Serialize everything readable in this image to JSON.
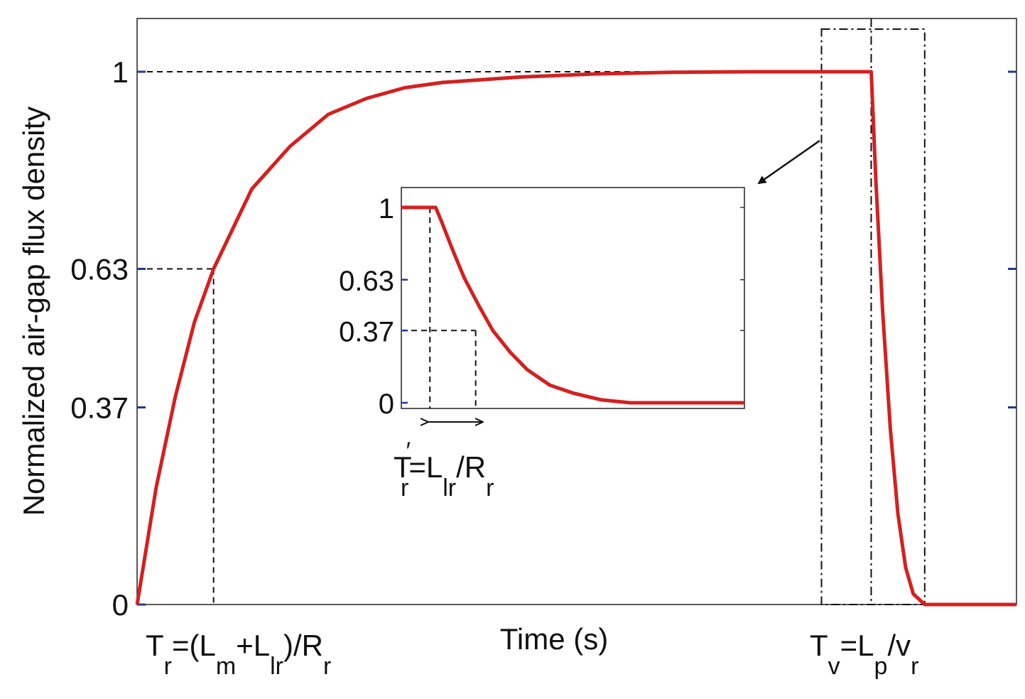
{
  "chart_data": [
    {
      "type": "line",
      "xlabel": "Time (s)",
      "ylabel": "Normalized air-gap flux density",
      "ylim": [
        0,
        1.1
      ],
      "xlim": [
        0,
        11.5
      ],
      "yticks": [
        "0",
        "0.37",
        "0.63",
        "1"
      ],
      "ytick_values": [
        0,
        0.37,
        0.63,
        1
      ],
      "grid": false,
      "series": [
        {
          "color": "#d42020",
          "x": [
            0,
            0.25,
            0.5,
            0.75,
            1.0,
            1.5,
            2.0,
            2.5,
            3.0,
            3.5,
            4.0,
            5.0,
            6.0,
            7.0,
            8.0,
            9.6,
            9.66,
            9.75,
            9.85,
            9.95,
            10.05,
            10.15,
            10.3,
            11.5
          ],
          "y": [
            0,
            0.22,
            0.39,
            0.53,
            0.63,
            0.78,
            0.86,
            0.92,
            0.95,
            0.97,
            0.98,
            0.99,
            0.996,
            0.999,
            1.0,
            1.0,
            0.8,
            0.55,
            0.33,
            0.17,
            0.07,
            0.02,
            0.0,
            0.0
          ]
        }
      ],
      "annotations": {
        "tr_label": {
          "main": "T",
          "sub1": "r",
          "mid1": "=(L",
          "sub2": "m",
          "mid2": "+L",
          "sub3": "lr",
          "mid3": ")/R",
          "sub4": "r"
        },
        "tv_label": {
          "main": "T",
          "sub1": "v",
          "mid1": "=L",
          "sub2": "p",
          "mid2": "/v",
          "sub3": "r"
        },
        "tr_marker_x": 1.0,
        "tv_marker_x": 9.6,
        "zoom_box_x": [
          8.95,
          10.3
        ],
        "zoom_box_y": [
          0,
          1.08
        ]
      }
    },
    {
      "type": "line",
      "inset": true,
      "ylim": [
        0,
        1
      ],
      "xlim": [
        0,
        6
      ],
      "yticks": [
        "0",
        "0.37",
        "0.63",
        "1"
      ],
      "ytick_values": [
        0,
        0.37,
        0.63,
        1
      ],
      "grid": false,
      "series": [
        {
          "color": "#d42020",
          "x": [
            0,
            0.6,
            0.7,
            0.9,
            1.1,
            1.35,
            1.6,
            1.9,
            2.2,
            2.6,
            3.0,
            3.5,
            4.0,
            6.0
          ],
          "y": [
            1.0,
            1.0,
            0.93,
            0.78,
            0.64,
            0.5,
            0.37,
            0.26,
            0.17,
            0.09,
            0.05,
            0.015,
            0.0,
            0.0
          ]
        }
      ],
      "annotations": {
        "tr_prime_label": {
          "main": "T",
          "prime": "′",
          "sub1": "r",
          "mid1": "=L",
          "sub2": "lr",
          "mid2": "/R",
          "sub3": "r"
        },
        "marker_x": [
          0.5,
          1.3
        ]
      }
    }
  ]
}
